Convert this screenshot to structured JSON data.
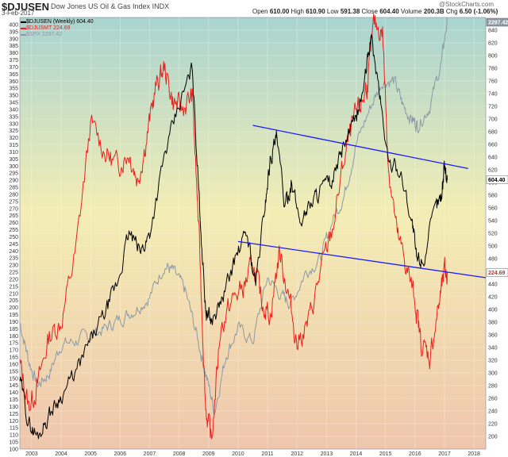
{
  "header": {
    "symbol": "$DJUSEN",
    "name": "Dow Jones US Oil & Gas Index",
    "exchange": "INDX",
    "date": "3-Feb-2017",
    "open_label": "Open",
    "open": "610.00",
    "high_label": "High",
    "high": "610.90",
    "low_label": "Low",
    "low": "591.38",
    "close_label": "Close",
    "close": "604.40",
    "volume_label": "Volume",
    "volume": "200.3B",
    "chg_label": "Chg",
    "chg": "6.50 (-1.06%)",
    "watermark": "@StockCharts.com"
  },
  "legend": [
    {
      "text": "$DJUSEN (Weekly) 604.40",
      "color": "#000000"
    },
    {
      "text": "$DJUSMT 224.69",
      "color": "#e8211c"
    },
    {
      "text": "$SPX 2297.42",
      "color": "#8c9aa6"
    }
  ],
  "right_tags": {
    "spx": "2297.42",
    "djusen": "604.40",
    "djusmt": "224.69"
  },
  "chart_data": {
    "type": "line",
    "x_ticks": [
      "2003",
      "2004",
      "2005",
      "2006",
      "2007",
      "2008",
      "2009",
      "2010",
      "2011",
      "2012",
      "2013",
      "2014",
      "2015",
      "2016",
      "2017",
      "2018"
    ],
    "xlim": [
      2002.6,
      2018.4
    ],
    "left_axis": {
      "ylim": [
        100,
        405
      ],
      "ticks": [
        100,
        105,
        110,
        115,
        120,
        125,
        130,
        135,
        140,
        145,
        150,
        155,
        160,
        165,
        170,
        175,
        180,
        185,
        190,
        195,
        200,
        205,
        210,
        215,
        220,
        225,
        230,
        235,
        240,
        245,
        250,
        255,
        260,
        265,
        270,
        275,
        280,
        285,
        290,
        295,
        300,
        305,
        310,
        315,
        320,
        325,
        330,
        335,
        340,
        345,
        350,
        355,
        360,
        365,
        370,
        375,
        380,
        385,
        390,
        395,
        400
      ]
    },
    "right_axis": {
      "ylim": [
        180,
        860
      ],
      "ticks": [
        200,
        220,
        240,
        260,
        280,
        300,
        320,
        340,
        360,
        380,
        400,
        420,
        440,
        460,
        480,
        500,
        520,
        540,
        560,
        580,
        600,
        620,
        640,
        660,
        680,
        700,
        720,
        740,
        760,
        780,
        800,
        820,
        840
      ]
    },
    "colors": {
      "djusen": "#000000",
      "djusmt": "#e8211c",
      "spx": "#8c9aa6",
      "trendline": "#1a1aff"
    },
    "series": [
      {
        "name": "$DJUSEN (Weekly) 604.40",
        "axis": "right",
        "x": [
          2002.6,
          2002.9,
          2003.2,
          2003.6,
          2004.0,
          2004.5,
          2005.0,
          2005.5,
          2005.9,
          2006.3,
          2006.7,
          2007.0,
          2007.5,
          2008.0,
          2008.45,
          2008.7,
          2008.9,
          2009.1,
          2009.5,
          2009.9,
          2010.3,
          2010.6,
          2010.9,
          2011.1,
          2011.3,
          2011.6,
          2011.8,
          2012.1,
          2012.5,
          2012.8,
          2013.2,
          2013.6,
          2014.0,
          2014.3,
          2014.5,
          2014.8,
          2015.1,
          2015.5,
          2015.9,
          2016.05,
          2016.3,
          2016.7,
          2016.9,
          2017.0,
          2017.1
        ],
        "y": [
          290,
          220,
          200,
          235,
          265,
          300,
          350,
          395,
          440,
          520,
          490,
          520,
          640,
          720,
          780,
          560,
          400,
          380,
          420,
          480,
          520,
          440,
          560,
          640,
          670,
          560,
          600,
          540,
          570,
          590,
          600,
          660,
          700,
          760,
          830,
          740,
          630,
          620,
          540,
          480,
          480,
          560,
          580,
          630,
          604
        ]
      },
      {
        "name": "$DJUSMT 224.69",
        "axis": "left",
        "x": [
          2002.6,
          2002.9,
          2003.2,
          2003.6,
          2004.0,
          2004.5,
          2005.0,
          2005.5,
          2005.9,
          2006.3,
          2006.6,
          2006.9,
          2007.2,
          2007.5,
          2007.8,
          2008.1,
          2008.45,
          2008.7,
          2008.9,
          2009.1,
          2009.4,
          2009.8,
          2010.2,
          2010.5,
          2010.8,
          2011.1,
          2011.4,
          2011.7,
          2012.0,
          2012.4,
          2012.8,
          2013.2,
          2013.6,
          2013.9,
          2014.2,
          2014.4,
          2014.6,
          2014.9,
          2015.1,
          2015.4,
          2015.7,
          2016.0,
          2016.2,
          2016.5,
          2016.8,
          2017.0,
          2017.1
        ],
        "y": [
          160,
          130,
          145,
          180,
          190,
          240,
          330,
          310,
          300,
          310,
          290,
          320,
          355,
          370,
          345,
          340,
          350,
          240,
          130,
          105,
          185,
          205,
          215,
          230,
          205,
          195,
          240,
          210,
          175,
          190,
          225,
          255,
          305,
          330,
          345,
          360,
          400,
          395,
          300,
          250,
          230,
          205,
          175,
          165,
          200,
          225,
          224.69
        ]
      },
      {
        "name": "$SPX 2297.42",
        "axis": "right",
        "x": [
          2002.6,
          2002.9,
          2003.2,
          2003.6,
          2004.0,
          2004.5,
          2005.0,
          2005.5,
          2006.0,
          2006.5,
          2007.0,
          2007.5,
          2007.8,
          2008.2,
          2008.6,
          2008.9,
          2009.2,
          2009.6,
          2010.0,
          2010.5,
          2011.0,
          2011.5,
          2011.8,
          2012.3,
          2012.8,
          2013.2,
          2013.6,
          2014.0,
          2014.5,
          2014.9,
          2015.3,
          2015.6,
          2015.9,
          2016.1,
          2016.5,
          2016.9,
          2017.1
        ],
        "y": [
          380,
          320,
          280,
          300,
          345,
          350,
          360,
          370,
          385,
          400,
          420,
          470,
          460,
          430,
          360,
          300,
          240,
          330,
          370,
          350,
          450,
          420,
          410,
          460,
          480,
          540,
          580,
          660,
          720,
          760,
          760,
          720,
          700,
          690,
          720,
          790,
          860
        ]
      }
    ],
    "trendlines": [
      {
        "axis": "right",
        "x": [
          2010.5,
          2017.8
        ],
        "y": [
          690,
          622
        ]
      },
      {
        "axis": "right",
        "x": [
          2010.0,
          2018.4
        ],
        "y": [
          507,
          450
        ]
      }
    ],
    "grid": true,
    "legend_position": "top-left"
  }
}
